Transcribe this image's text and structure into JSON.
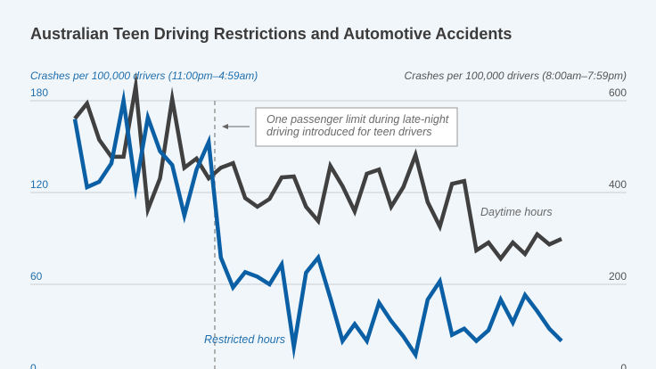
{
  "chart_data": {
    "type": "line",
    "title": "Australian Teen Driving Restrictions and Automotive Accidents",
    "left_axis": {
      "label": "Crashes per 100,000 drivers (11:00pm–4:59am)",
      "ticks": [
        "0",
        "60",
        "120",
        "180"
      ],
      "range": [
        0,
        180
      ],
      "color": "#1f6fae"
    },
    "right_axis": {
      "label": "Crashes per 100,000 drivers (8:00am–7:59pm)",
      "ticks": [
        "0",
        "200",
        "400",
        "600"
      ],
      "range": [
        0,
        600
      ],
      "color": "#555555"
    },
    "grid": true,
    "x_count": 41,
    "series": [
      {
        "name": "Restricted hours",
        "axis": "left",
        "color": "#0b5fa5",
        "values": [
          168,
          123.5,
          127,
          139,
          180,
          123.5,
          169,
          147,
          138,
          105,
          135,
          153,
          77.5,
          58,
          68,
          65,
          60,
          73,
          19,
          67.6,
          77.5,
          51,
          23,
          34,
          23,
          48,
          36,
          26,
          14,
          50,
          62,
          27,
          31,
          23,
          30,
          50,
          35,
          53,
          42.5,
          31,
          23
        ]
      },
      {
        "name": "Daytime hours",
        "axis": "right",
        "color": "#404040",
        "values": [
          561,
          594,
          515,
          478,
          478,
          631,
          363,
          431,
          604,
          454,
          474,
          431,
          454,
          464,
          388,
          369,
          386,
          433,
          435,
          369,
          338,
          458,
          414,
          359,
          441,
          450,
          369,
          412,
          482,
          379,
          326,
          419,
          425,
          274,
          291,
          256,
          291,
          266,
          309,
          287,
          299
        ]
      }
    ],
    "annotation": {
      "text_lines": [
        "One passenger limit during late-night",
        "driving introduced for teen drivers"
      ],
      "at_x_index": 11.5
    }
  }
}
